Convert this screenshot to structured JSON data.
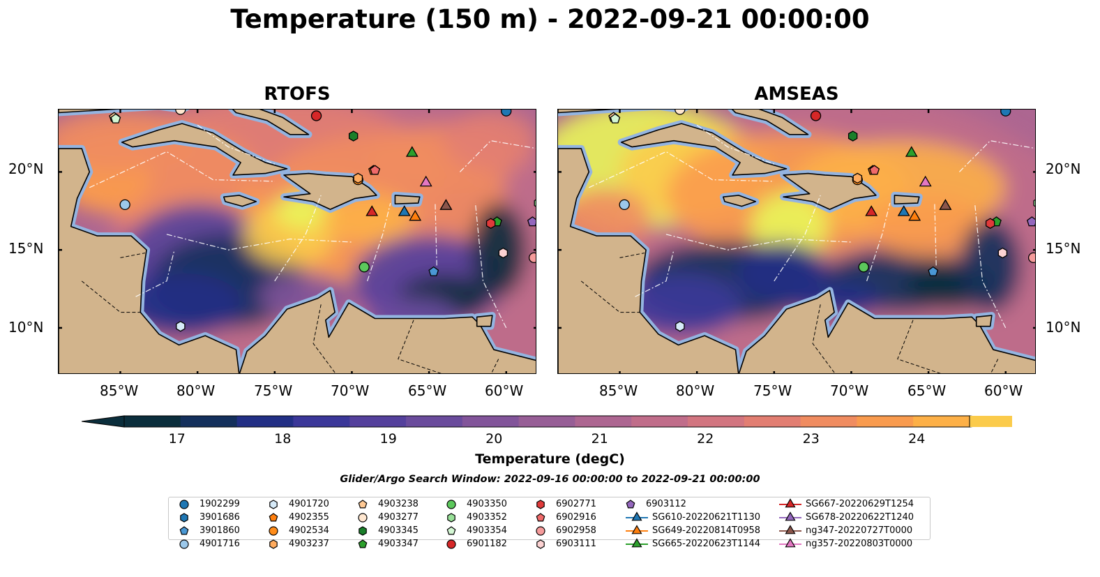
{
  "title": "Temperature (150 m) - 2022-09-21 00:00:00",
  "panels": [
    {
      "title": "RTOFS",
      "key": "rtofs"
    },
    {
      "title": "AMSEAS",
      "key": "amseas"
    }
  ],
  "map": {
    "extent_lon": [
      -89,
      -58
    ],
    "extent_lat": [
      7,
      24
    ],
    "lat_ticks": [
      "20°N",
      "15°N",
      "10°N"
    ],
    "lon_ticks": [
      "85°W",
      "80°W",
      "75°W",
      "70°W",
      "65°W",
      "60°W"
    ],
    "colors": {
      "land": "#d2b48c",
      "shelf_water": "#94b4e0",
      "coast": "#000000",
      "eez_lines": "#ffffff"
    }
  },
  "colorbar": {
    "label": "Temperature (degC)",
    "ticks": [
      "17",
      "18",
      "19",
      "20",
      "21",
      "22",
      "23",
      "24"
    ],
    "min": 16.5,
    "max": 24.5,
    "colormap": "thermal",
    "colors": [
      "#0b2e3c",
      "#14305c",
      "#222f85",
      "#3b3799",
      "#54409c",
      "#6a4b9c",
      "#82549a",
      "#975e96",
      "#ad6691",
      "#c06d8a",
      "#d27580",
      "#e27e72",
      "#f08c60",
      "#f99b4e",
      "#fdb047",
      "#fbcb4b",
      "#e9f55a"
    ]
  },
  "search_window": "Glider/Argo Search Window: 2022-09-16 00:00:00 to 2022-09-21 00:00:00",
  "legend": [
    {
      "label": "1902299",
      "marker": "circle",
      "color": "#1f77b4"
    },
    {
      "label": "3901686",
      "marker": "hexagon",
      "color": "#1f77b4"
    },
    {
      "label": "3901860",
      "marker": "pentagon",
      "color": "#4a98d4"
    },
    {
      "label": "4901716",
      "marker": "circle",
      "color": "#9cc8ea"
    },
    {
      "label": "4901720",
      "marker": "hexagon",
      "color": "#d6eaf8"
    },
    {
      "label": "4902355",
      "marker": "pentagon",
      "color": "#ff7f0e"
    },
    {
      "label": "4902534",
      "marker": "circle",
      "color": "#ff8c1a"
    },
    {
      "label": "4903237",
      "marker": "hexagon",
      "color": "#ffab5e"
    },
    {
      "label": "4903238",
      "marker": "pentagon",
      "color": "#ffc994"
    },
    {
      "label": "4903277",
      "marker": "circle",
      "color": "#ffe7d0"
    },
    {
      "label": "4903345",
      "marker": "hexagon",
      "color": "#1a7f2a"
    },
    {
      "label": "4903347",
      "marker": "pentagon",
      "color": "#2ca02c"
    },
    {
      "label": "4903350",
      "marker": "circle",
      "color": "#5cc85c"
    },
    {
      "label": "4903352",
      "marker": "hexagon",
      "color": "#98e098"
    },
    {
      "label": "4903354",
      "marker": "pentagon",
      "color": "#d4f7d4"
    },
    {
      "label": "6901182",
      "marker": "circle",
      "color": "#d62728"
    },
    {
      "label": "6902771",
      "marker": "hexagon",
      "color": "#e03a3a"
    },
    {
      "label": "6902916",
      "marker": "pentagon",
      "color": "#f06a6a"
    },
    {
      "label": "6902958",
      "marker": "circle",
      "color": "#f59b9b"
    },
    {
      "label": "6903111",
      "marker": "hexagon",
      "color": "#fcd2d2"
    },
    {
      "label": "6903112",
      "marker": "pentagon",
      "color": "#9467bd"
    },
    {
      "label": "SG610-20220621T1130",
      "marker": "triangle",
      "color": "#1f77b4"
    },
    {
      "label": "SG649-20220814T0958",
      "marker": "triangle",
      "color": "#ff7f0e"
    },
    {
      "label": "SG665-20220623T1144",
      "marker": "triangle",
      "color": "#2ca02c"
    },
    {
      "label": "SG667-20220629T1254",
      "marker": "triangle",
      "color": "#d62728"
    },
    {
      "label": "SG678-20220622T1240",
      "marker": "triangle",
      "color": "#9467bd"
    },
    {
      "label": "ng347-20220727T0000",
      "marker": "triangle",
      "color": "#8c564b"
    },
    {
      "label": "ng357-20220803T0000",
      "marker": "triangle",
      "color": "#e377c2"
    }
  ],
  "platforms": [
    {
      "id": "1902299",
      "lon": -60,
      "lat": 23.9
    },
    {
      "id": "3901686",
      "lon": -58.6,
      "lat": 24.4
    },
    {
      "id": "3901860",
      "lon": -64.7,
      "lat": 13.6
    },
    {
      "id": "4901716",
      "lon": -84.7,
      "lat": 17.9
    },
    {
      "id": "4901720",
      "lon": -81.1,
      "lat": 10.1
    },
    {
      "id": "4902355",
      "lon": -68.6,
      "lat": 20.1
    },
    {
      "id": "4902534",
      "lon": -69.6,
      "lat": 19.5
    },
    {
      "id": "4903237",
      "lon": -69.6,
      "lat": 19.6
    },
    {
      "id": "4903238",
      "lon": -85.4,
      "lat": 23.5
    },
    {
      "id": "4903277",
      "lon": -81.1,
      "lat": 24.0
    },
    {
      "id": "4903345",
      "lon": -69.9,
      "lat": 22.3
    },
    {
      "id": "4903347",
      "lon": -60.6,
      "lat": 16.8
    },
    {
      "id": "4903350",
      "lon": -69.2,
      "lat": 13.9
    },
    {
      "id": "4903352",
      "lon": -57.9,
      "lat": 18.0
    },
    {
      "id": "4903354",
      "lon": -85.3,
      "lat": 23.4
    },
    {
      "id": "6901182",
      "lon": -72.3,
      "lat": 23.6
    },
    {
      "id": "6902771",
      "lon": -61.0,
      "lat": 16.7
    },
    {
      "id": "6902916",
      "lon": -68.5,
      "lat": 20.1
    },
    {
      "id": "6902958",
      "lon": -58.2,
      "lat": 14.5
    },
    {
      "id": "6903111",
      "lon": -60.2,
      "lat": 14.8
    },
    {
      "id": "6903112",
      "lon": -58.3,
      "lat": 16.8
    },
    {
      "id": "SG610-20220621T1130",
      "lon": -66.6,
      "lat": 17.4
    },
    {
      "id": "SG649-20220814T0958",
      "lon": -65.9,
      "lat": 17.1
    },
    {
      "id": "SG665-20220623T1144",
      "lon": -66.1,
      "lat": 21.2
    },
    {
      "id": "SG667-20220629T1254",
      "lon": -68.7,
      "lat": 17.4
    },
    {
      "id": "SG678-20220622T1240",
      "lon": -63.9,
      "lat": 17.8
    },
    {
      "id": "ng347-20220727T0000",
      "lon": -63.9,
      "lat": 17.8
    },
    {
      "id": "ng357-20220803T0000",
      "lon": -65.2,
      "lat": 19.3
    }
  ]
}
